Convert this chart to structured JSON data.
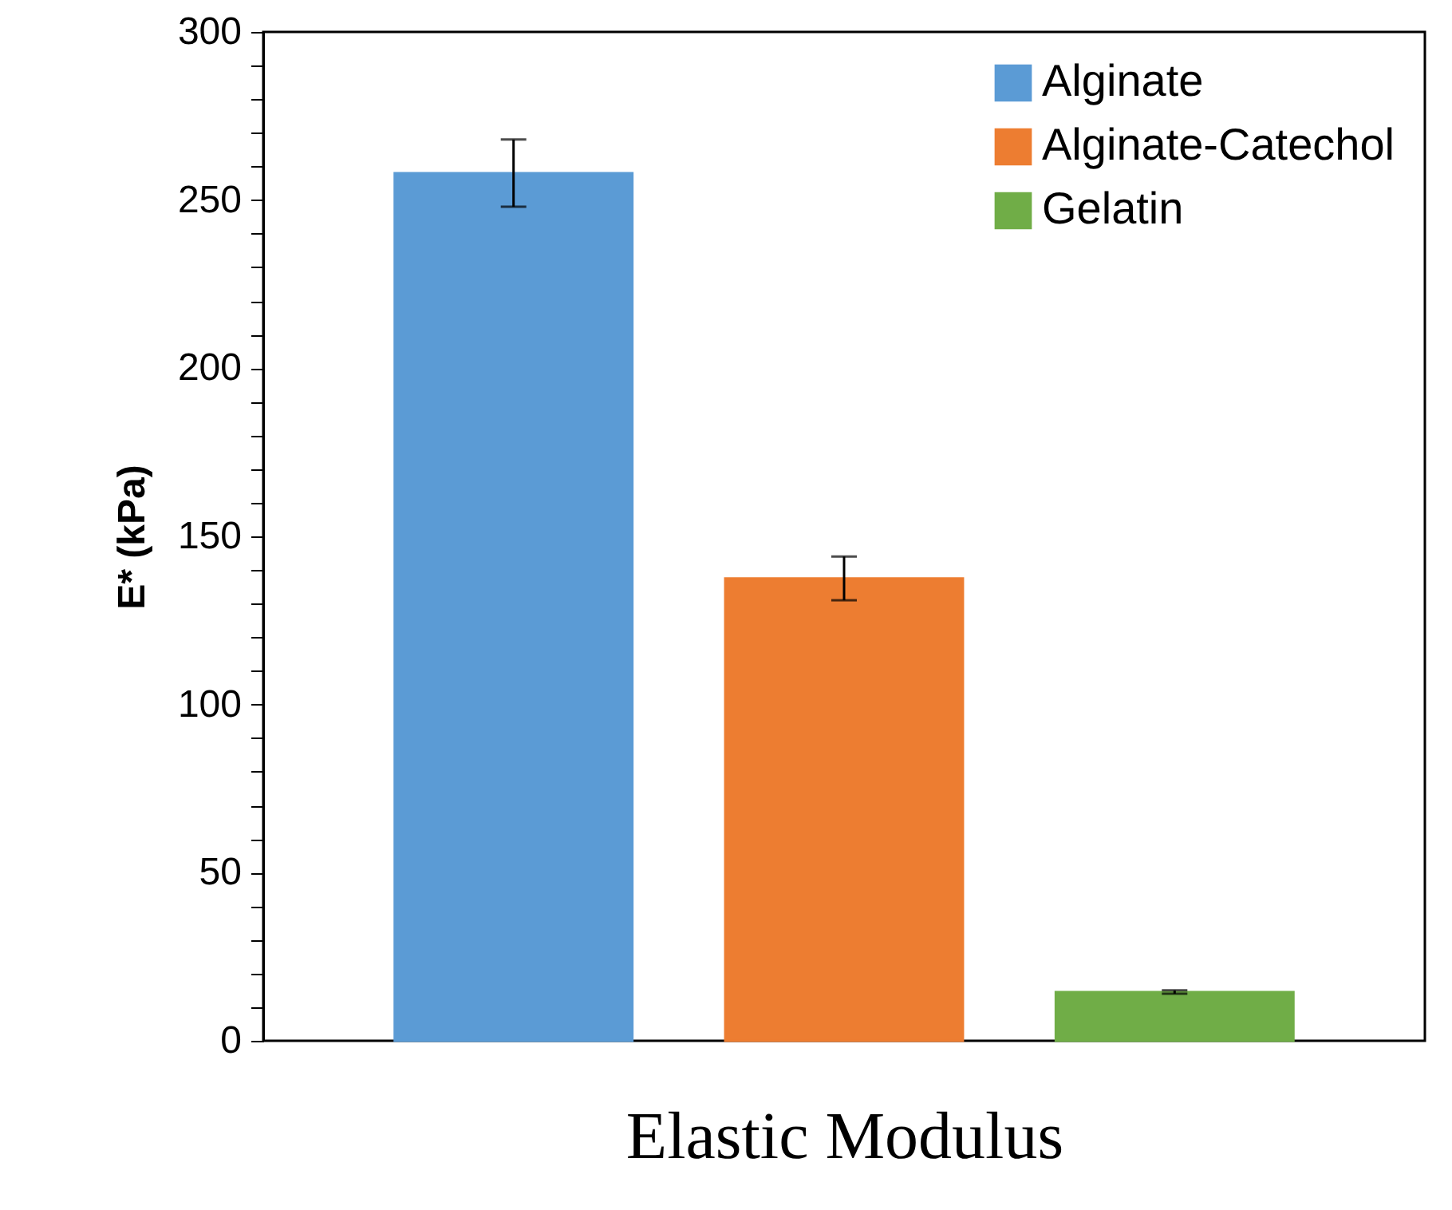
{
  "chart_data": {
    "type": "bar",
    "xlabel": "Elastic Modulus",
    "ylabel": "E* (kPa)",
    "categories": [
      null
    ],
    "series": [
      {
        "name": "Alginate",
        "color": "#5b9bd5",
        "values": [
          258
        ],
        "errors": [
          10
        ]
      },
      {
        "name": "Alginate-Catechol",
        "color": "#ed7d31",
        "values": [
          137.5
        ],
        "errors": [
          6.5
        ]
      },
      {
        "name": "Gelatin",
        "color": "#70ad47",
        "values": [
          14.5
        ],
        "errors": [
          0.5
        ]
      }
    ],
    "ylim": [
      0,
      300
    ],
    "yticks": [
      0,
      {
        "value": 10,
        "label": null
      },
      {
        "value": 20,
        "label": null
      },
      {
        "value": 30,
        "label": null
      },
      {
        "value": 40,
        "label": null
      },
      50,
      {
        "value": 60,
        "label": null
      },
      {
        "value": 70,
        "label": null
      },
      {
        "value": 80,
        "label": null
      },
      {
        "value": 90,
        "label": null
      },
      100,
      {
        "value": 110,
        "label": null
      },
      {
        "value": 120,
        "label": null
      },
      {
        "value": 130,
        "label": null
      },
      {
        "value": 140,
        "label": null
      },
      150,
      {
        "value": 160,
        "label": null
      },
      {
        "value": 170,
        "label": null
      },
      {
        "value": 180,
        "label": null
      },
      {
        "value": 190,
        "label": null
      },
      200,
      {
        "value": 210,
        "label": null
      },
      {
        "value": 220,
        "label": null
      },
      {
        "value": 230,
        "label": null
      },
      {
        "value": 240,
        "label": null
      },
      250,
      {
        "value": 260,
        "label": null
      },
      {
        "value": 270,
        "label": null
      },
      {
        "value": 280,
        "label": null
      },
      {
        "value": 290,
        "label": null
      },
      300
    ],
    "legend": "top right",
    "grid": false
  }
}
